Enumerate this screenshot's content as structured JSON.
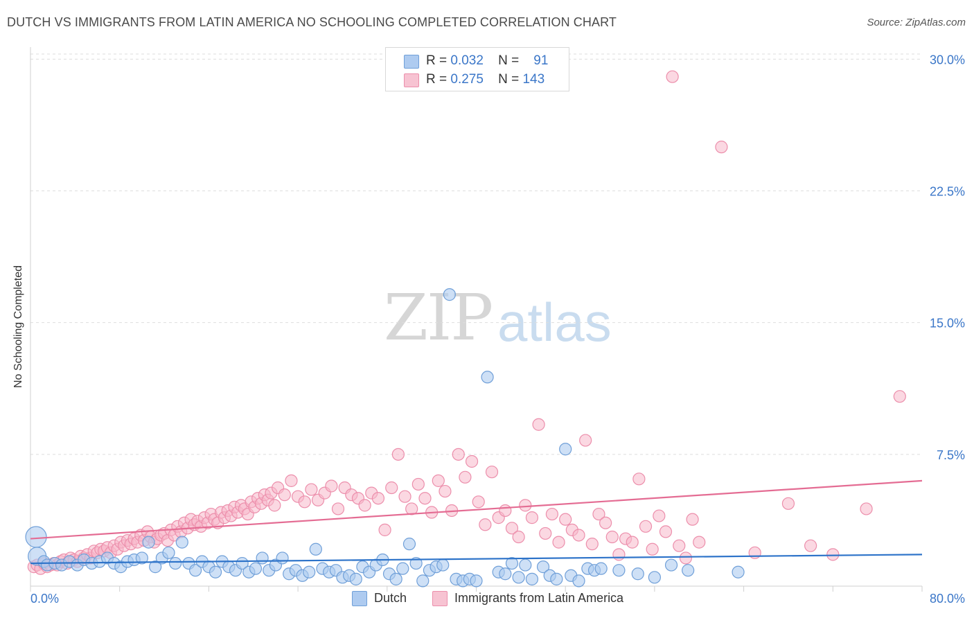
{
  "header": {
    "title": "DUTCH VS IMMIGRANTS FROM LATIN AMERICA NO SCHOOLING COMPLETED CORRELATION CHART",
    "source": "Source: ZipAtlas.com"
  },
  "watermark": {
    "zip": "ZIP",
    "atlas": "atlas"
  },
  "stats": {
    "dutch": {
      "r_label": "R =",
      "r_value": "0.032",
      "n_label": "N =",
      "n_value": "91"
    },
    "latin": {
      "r_label": "R =",
      "r_value": "0.275",
      "n_label": "N =",
      "n_value": "143"
    }
  },
  "legend": {
    "dutch": "Dutch",
    "latin": "Immigrants from Latin America"
  },
  "colors": {
    "dutch_fill": "#aecbf0",
    "dutch_stroke": "#6f9fd8",
    "dutch_line": "#2d73c9",
    "latin_fill": "#f7b8cb",
    "latin_stroke": "#ec8eab",
    "latin_line": "#e46c93",
    "tick_text": "#3a76c8",
    "grid": "#dddddd"
  },
  "chart_data": {
    "type": "scatter",
    "title": "DUTCH VS IMMIGRANTS FROM LATIN AMERICA NO SCHOOLING COMPLETED CORRELATION CHART",
    "xlabel": "",
    "ylabel": "No Schooling Completed",
    "xlim": [
      0,
      80
    ],
    "ylim": [
      0,
      31
    ],
    "x_tick_labels": [
      "0.0%",
      "80.0%"
    ],
    "y_ticks": [
      7.5,
      15.0,
      22.5,
      30.0
    ],
    "y_tick_labels": [
      "7.5%",
      "15.0%",
      "22.5%",
      "30.0%"
    ],
    "grid": "horizontal dashed",
    "series": [
      {
        "name": "Dutch",
        "r": 0.032,
        "n": 91,
        "trend": {
          "x": [
            0,
            80
          ],
          "y": [
            1.3,
            1.8
          ]
        },
        "points": [
          [
            0.5,
            2.8
          ],
          [
            0.6,
            1.7
          ],
          [
            1.2,
            1.4
          ],
          [
            1.5,
            1.2
          ],
          [
            2.2,
            1.3
          ],
          [
            2.8,
            1.2
          ],
          [
            3.5,
            1.4
          ],
          [
            4.2,
            1.2
          ],
          [
            4.8,
            1.5
          ],
          [
            5.5,
            1.3
          ],
          [
            6.2,
            1.4
          ],
          [
            6.9,
            1.6
          ],
          [
            7.5,
            1.3
          ],
          [
            8.1,
            1.1
          ],
          [
            8.7,
            1.4
          ],
          [
            9.3,
            1.5
          ],
          [
            10.0,
            1.6
          ],
          [
            10.6,
            2.5
          ],
          [
            11.2,
            1.1
          ],
          [
            11.8,
            1.6
          ],
          [
            12.4,
            1.9
          ],
          [
            13.0,
            1.3
          ],
          [
            13.6,
            2.5
          ],
          [
            14.2,
            1.3
          ],
          [
            14.8,
            0.9
          ],
          [
            15.4,
            1.4
          ],
          [
            16.0,
            1.1
          ],
          [
            16.6,
            0.8
          ],
          [
            17.2,
            1.4
          ],
          [
            17.8,
            1.1
          ],
          [
            18.4,
            0.9
          ],
          [
            19.0,
            1.3
          ],
          [
            19.6,
            0.8
          ],
          [
            20.2,
            1.0
          ],
          [
            20.8,
            1.6
          ],
          [
            21.4,
            0.9
          ],
          [
            22.0,
            1.2
          ],
          [
            22.6,
            1.6
          ],
          [
            23.2,
            0.7
          ],
          [
            23.8,
            0.9
          ],
          [
            24.4,
            0.6
          ],
          [
            25.0,
            0.8
          ],
          [
            25.6,
            2.1
          ],
          [
            26.2,
            1.0
          ],
          [
            26.8,
            0.8
          ],
          [
            27.4,
            0.9
          ],
          [
            28.0,
            0.5
          ],
          [
            28.6,
            0.6
          ],
          [
            29.2,
            0.4
          ],
          [
            29.8,
            1.1
          ],
          [
            30.4,
            0.8
          ],
          [
            31.0,
            1.2
          ],
          [
            31.6,
            1.5
          ],
          [
            32.2,
            0.7
          ],
          [
            32.8,
            0.4
          ],
          [
            33.4,
            1.0
          ],
          [
            34.0,
            2.4
          ],
          [
            34.6,
            1.3
          ],
          [
            35.2,
            0.3
          ],
          [
            35.8,
            0.9
          ],
          [
            36.4,
            1.1
          ],
          [
            37.0,
            1.2
          ],
          [
            37.6,
            16.6
          ],
          [
            38.2,
            0.4
          ],
          [
            38.8,
            0.3
          ],
          [
            39.4,
            0.4
          ],
          [
            40.0,
            0.3
          ],
          [
            41.0,
            11.9
          ],
          [
            42.0,
            0.8
          ],
          [
            42.6,
            0.7
          ],
          [
            43.2,
            1.3
          ],
          [
            43.8,
            0.5
          ],
          [
            44.4,
            1.2
          ],
          [
            45.0,
            0.4
          ],
          [
            46.0,
            1.1
          ],
          [
            46.6,
            0.6
          ],
          [
            47.2,
            0.4
          ],
          [
            48.0,
            7.8
          ],
          [
            48.5,
            0.6
          ],
          [
            49.2,
            0.3
          ],
          [
            50.0,
            1.0
          ],
          [
            50.6,
            0.9
          ],
          [
            51.2,
            1.0
          ],
          [
            52.8,
            0.9
          ],
          [
            54.5,
            0.7
          ],
          [
            56.0,
            0.5
          ],
          [
            57.5,
            1.2
          ],
          [
            59.0,
            0.9
          ],
          [
            63.5,
            0.8
          ]
        ]
      },
      {
        "name": "Immigrants from Latin America",
        "r": 0.275,
        "n": 143,
        "trend": {
          "x": [
            0,
            80
          ],
          "y": [
            2.7,
            6.0
          ]
        },
        "points": [
          [
            0.3,
            1.1
          ],
          [
            0.6,
            1.2
          ],
          [
            0.9,
            1.0
          ],
          [
            1.2,
            1.3
          ],
          [
            1.5,
            1.1
          ],
          [
            1.8,
            1.2
          ],
          [
            2.1,
            1.3
          ],
          [
            2.4,
            1.2
          ],
          [
            2.7,
            1.4
          ],
          [
            3.0,
            1.5
          ],
          [
            3.3,
            1.3
          ],
          [
            3.6,
            1.6
          ],
          [
            3.9,
            1.5
          ],
          [
            4.2,
            1.4
          ],
          [
            4.5,
            1.7
          ],
          [
            4.8,
            1.6
          ],
          [
            5.1,
            1.8
          ],
          [
            5.4,
            1.6
          ],
          [
            5.7,
            2.0
          ],
          [
            6.0,
            1.9
          ],
          [
            6.3,
            2.1
          ],
          [
            6.6,
            2.0
          ],
          [
            6.9,
            2.2
          ],
          [
            7.2,
            1.9
          ],
          [
            7.5,
            2.3
          ],
          [
            7.8,
            2.1
          ],
          [
            8.1,
            2.5
          ],
          [
            8.4,
            2.3
          ],
          [
            8.7,
            2.6
          ],
          [
            9.0,
            2.4
          ],
          [
            9.3,
            2.7
          ],
          [
            9.6,
            2.5
          ],
          [
            9.9,
            2.9
          ],
          [
            10.2,
            2.6
          ],
          [
            10.5,
            3.1
          ],
          [
            10.8,
            2.8
          ],
          [
            11.1,
            2.5
          ],
          [
            11.4,
            2.7
          ],
          [
            11.7,
            2.9
          ],
          [
            12.0,
            3.0
          ],
          [
            12.3,
            2.6
          ],
          [
            12.6,
            3.2
          ],
          [
            12.9,
            2.9
          ],
          [
            13.2,
            3.4
          ],
          [
            13.5,
            3.1
          ],
          [
            13.8,
            3.6
          ],
          [
            14.1,
            3.3
          ],
          [
            14.4,
            3.8
          ],
          [
            14.7,
            3.5
          ],
          [
            15.0,
            3.7
          ],
          [
            15.3,
            3.4
          ],
          [
            15.6,
            3.9
          ],
          [
            15.9,
            3.6
          ],
          [
            16.2,
            4.1
          ],
          [
            16.5,
            3.8
          ],
          [
            16.8,
            3.6
          ],
          [
            17.1,
            4.2
          ],
          [
            17.4,
            3.9
          ],
          [
            17.7,
            4.3
          ],
          [
            18.0,
            4.0
          ],
          [
            18.3,
            4.5
          ],
          [
            18.6,
            4.2
          ],
          [
            18.9,
            4.6
          ],
          [
            19.2,
            4.4
          ],
          [
            19.5,
            4.1
          ],
          [
            19.8,
            4.8
          ],
          [
            20.1,
            4.5
          ],
          [
            20.4,
            5.0
          ],
          [
            20.7,
            4.7
          ],
          [
            21.0,
            5.2
          ],
          [
            21.3,
            4.9
          ],
          [
            21.6,
            5.3
          ],
          [
            21.9,
            4.6
          ],
          [
            22.2,
            5.6
          ],
          [
            22.8,
            5.2
          ],
          [
            23.4,
            6.0
          ],
          [
            24.0,
            5.1
          ],
          [
            24.6,
            4.8
          ],
          [
            25.2,
            5.5
          ],
          [
            25.8,
            4.9
          ],
          [
            26.4,
            5.3
          ],
          [
            27.0,
            5.7
          ],
          [
            27.6,
            4.4
          ],
          [
            28.2,
            5.6
          ],
          [
            28.8,
            5.2
          ],
          [
            29.4,
            5.0
          ],
          [
            30.0,
            4.6
          ],
          [
            30.6,
            5.3
          ],
          [
            31.2,
            5.0
          ],
          [
            31.8,
            3.2
          ],
          [
            32.4,
            5.6
          ],
          [
            33.0,
            7.5
          ],
          [
            33.6,
            5.1
          ],
          [
            34.2,
            4.4
          ],
          [
            34.8,
            5.8
          ],
          [
            35.4,
            5.0
          ],
          [
            36.0,
            4.2
          ],
          [
            36.6,
            6.0
          ],
          [
            37.2,
            5.4
          ],
          [
            37.8,
            4.3
          ],
          [
            38.4,
            7.5
          ],
          [
            39.0,
            6.2
          ],
          [
            39.6,
            7.1
          ],
          [
            40.2,
            4.8
          ],
          [
            40.8,
            3.5
          ],
          [
            41.4,
            6.5
          ],
          [
            42.0,
            3.9
          ],
          [
            42.6,
            4.3
          ],
          [
            43.2,
            3.3
          ],
          [
            43.8,
            2.8
          ],
          [
            44.4,
            4.6
          ],
          [
            45.0,
            3.9
          ],
          [
            45.6,
            9.2
          ],
          [
            46.2,
            3.0
          ],
          [
            46.8,
            4.1
          ],
          [
            47.4,
            2.5
          ],
          [
            48.0,
            3.8
          ],
          [
            48.6,
            3.2
          ],
          [
            49.2,
            2.9
          ],
          [
            49.8,
            8.3
          ],
          [
            50.4,
            2.4
          ],
          [
            51.0,
            4.1
          ],
          [
            51.6,
            3.6
          ],
          [
            52.2,
            2.8
          ],
          [
            52.8,
            1.8
          ],
          [
            53.4,
            2.7
          ],
          [
            54.0,
            2.5
          ],
          [
            54.6,
            6.1
          ],
          [
            55.2,
            3.4
          ],
          [
            55.8,
            2.1
          ],
          [
            56.4,
            4.0
          ],
          [
            57.0,
            3.1
          ],
          [
            57.6,
            29.0
          ],
          [
            58.2,
            2.3
          ],
          [
            58.8,
            1.6
          ],
          [
            59.4,
            3.8
          ],
          [
            60.0,
            2.5
          ],
          [
            62.0,
            25.0
          ],
          [
            65.0,
            1.9
          ],
          [
            68.0,
            4.7
          ],
          [
            70.0,
            2.3
          ],
          [
            72.0,
            1.8
          ],
          [
            75.0,
            4.4
          ],
          [
            78.0,
            10.8
          ]
        ]
      }
    ]
  }
}
